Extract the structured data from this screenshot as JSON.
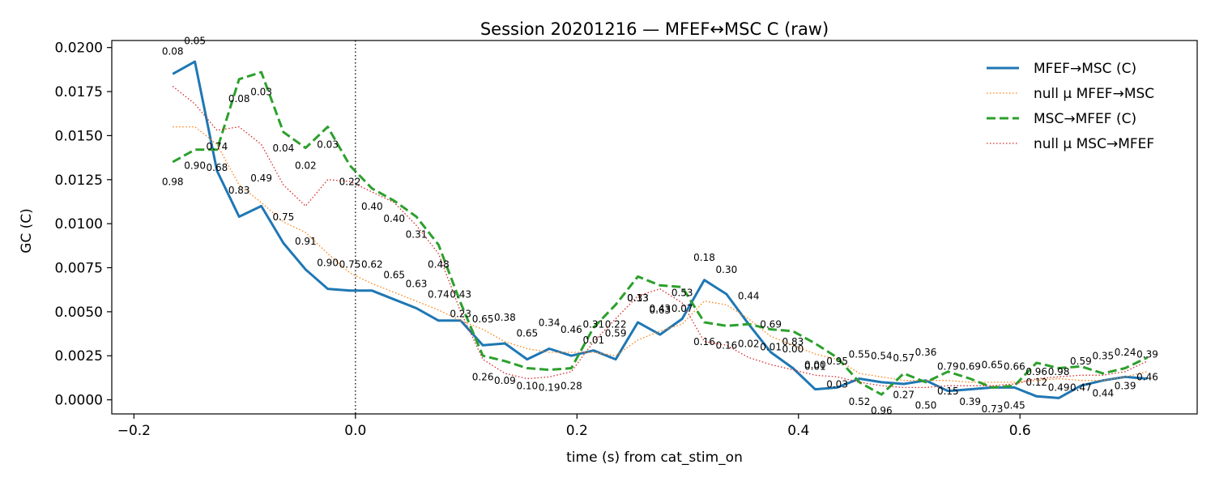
{
  "chart_data": {
    "type": "line",
    "title": "Session 20201216 — MFEF↔MSC C (raw)",
    "xlabel": "time (s) from cat_stim_on",
    "ylabel": "GC (C)",
    "xlim": [
      -0.22,
      0.76
    ],
    "ylim": [
      -0.0008,
      0.0204
    ],
    "xticks": [
      -0.2,
      0.0,
      0.2,
      0.4,
      0.6
    ],
    "xtick_labels": [
      "−0.2",
      "0.0",
      "0.2",
      "0.4",
      "0.6"
    ],
    "yticks": [
      0.0,
      0.0025,
      0.005,
      0.0075,
      0.01,
      0.0125,
      0.015,
      0.0175,
      0.02
    ],
    "ytick_labels": [
      "0.0000",
      "0.0025",
      "0.0050",
      "0.0075",
      "0.0100",
      "0.0125",
      "0.0150",
      "0.0175",
      "0.0200"
    ],
    "vline_x": 0.0,
    "grid": false,
    "legend_position": "top-right",
    "x": [
      -0.165,
      -0.145,
      -0.125,
      -0.105,
      -0.085,
      -0.065,
      -0.045,
      -0.025,
      -0.005,
      0.015,
      0.035,
      0.055,
      0.075,
      0.095,
      0.115,
      0.135,
      0.155,
      0.175,
      0.195,
      0.215,
      0.235,
      0.255,
      0.275,
      0.295,
      0.315,
      0.335,
      0.355,
      0.375,
      0.395,
      0.415,
      0.435,
      0.455,
      0.475,
      0.495,
      0.515,
      0.535,
      0.555,
      0.575,
      0.595,
      0.615,
      0.635,
      0.655,
      0.675,
      0.695,
      0.715
    ],
    "series": [
      {
        "name": "MFEF→MSC (C)",
        "color": "#1f77b4",
        "style": "solid",
        "values": [
          0.0185,
          0.0192,
          0.013,
          0.0104,
          0.011,
          0.0089,
          0.0074,
          0.0063,
          0.0062,
          0.0062,
          0.0057,
          0.0052,
          0.0045,
          0.0045,
          0.0031,
          0.0032,
          0.0023,
          0.0029,
          0.0025,
          0.0028,
          0.0023,
          0.0044,
          0.0037,
          0.0046,
          0.0068,
          0.006,
          0.0043,
          0.0027,
          0.0018,
          0.0006,
          0.0007,
          0.0012,
          0.001,
          0.0009,
          0.0011,
          0.0005,
          0.0006,
          0.0007,
          0.0007,
          0.0002,
          0.0001,
          0.0008,
          0.0011,
          0.0013,
          0.0012
        ]
      },
      {
        "name": "null μ MFEF→MSC",
        "color": "#ff7f0e",
        "style": "dotted",
        "values": [
          0.0155,
          0.0155,
          0.0145,
          0.0122,
          0.0112,
          0.0101,
          0.0095,
          0.0083,
          0.0072,
          0.0066,
          0.0061,
          0.0056,
          0.0051,
          0.0045,
          0.004,
          0.0033,
          0.0029,
          0.0027,
          0.0027,
          0.0027,
          0.0025,
          0.0034,
          0.0039,
          0.0043,
          0.0056,
          0.0054,
          0.0046,
          0.0036,
          0.0031,
          0.0026,
          0.0023,
          0.0015,
          0.0013,
          0.0011,
          0.0011,
          0.0011,
          0.001,
          0.001,
          0.001,
          0.0011,
          0.0012,
          0.0011,
          0.0011,
          0.0013,
          0.0016
        ]
      },
      {
        "name": "MSC→MFEF (C)",
        "color": "#2ca02c",
        "style": "dashed",
        "values": [
          0.0135,
          0.0142,
          0.0142,
          0.0182,
          0.0186,
          0.0152,
          0.0143,
          0.0155,
          0.0133,
          0.012,
          0.0113,
          0.0104,
          0.0088,
          0.0055,
          0.0025,
          0.0022,
          0.0018,
          0.0017,
          0.0018,
          0.0041,
          0.0054,
          0.007,
          0.0065,
          0.0064,
          0.0044,
          0.0042,
          0.0043,
          0.004,
          0.0039,
          0.0032,
          0.0024,
          0.001,
          0.0003,
          0.0015,
          0.001,
          0.0016,
          0.0012,
          0.0007,
          0.0008,
          0.0021,
          0.0018,
          0.0019,
          0.0015,
          0.0018,
          0.0024
        ]
      },
      {
        "name": "null μ MSC→MFEF",
        "color": "#d62728",
        "style": "dotted",
        "values": [
          0.0178,
          0.0168,
          0.0153,
          0.0155,
          0.0145,
          0.0122,
          0.011,
          0.0125,
          0.0124,
          0.0118,
          0.0112,
          0.0099,
          0.0083,
          0.005,
          0.0023,
          0.0015,
          0.0012,
          0.0013,
          0.0016,
          0.0033,
          0.0046,
          0.0059,
          0.0063,
          0.0055,
          0.0033,
          0.0031,
          0.0024,
          0.002,
          0.0017,
          0.0014,
          0.0013,
          0.001,
          0.0008,
          0.0007,
          0.0007,
          0.0008,
          0.0008,
          0.0008,
          0.0009,
          0.0012,
          0.0013,
          0.0014,
          0.0014,
          0.0016,
          0.0022
        ]
      }
    ],
    "annotations": [
      {
        "text": "0.08",
        "x": -0.165,
        "y": 0.0196
      },
      {
        "text": "0.98",
        "x": -0.165,
        "y": 0.0122
      },
      {
        "text": "0.05",
        "x": -0.145,
        "y": 0.0202
      },
      {
        "text": "0.90",
        "x": -0.145,
        "y": 0.0131
      },
      {
        "text": "0.74",
        "x": -0.125,
        "y": 0.0142
      },
      {
        "text": "0.68",
        "x": -0.125,
        "y": 0.013
      },
      {
        "text": "0.08",
        "x": -0.105,
        "y": 0.0169
      },
      {
        "text": "0.83",
        "x": -0.105,
        "y": 0.0117
      },
      {
        "text": "0.03",
        "x": -0.085,
        "y": 0.0173
      },
      {
        "text": "0.49",
        "x": -0.085,
        "y": 0.0124
      },
      {
        "text": "0.75",
        "x": -0.065,
        "y": 0.0102
      },
      {
        "text": "0.04",
        "x": -0.065,
        "y": 0.0141
      },
      {
        "text": "0.02",
        "x": -0.045,
        "y": 0.0131
      },
      {
        "text": "0.91",
        "x": -0.045,
        "y": 0.0088
      },
      {
        "text": "0.03",
        "x": -0.025,
        "y": 0.0143
      },
      {
        "text": "0.90",
        "x": -0.025,
        "y": 0.0076
      },
      {
        "text": "0.75",
        "x": -0.005,
        "y": 0.0075
      },
      {
        "text": "0.22",
        "x": -0.005,
        "y": 0.0122
      },
      {
        "text": "0.62",
        "x": 0.015,
        "y": 0.0075
      },
      {
        "text": "0.40",
        "x": 0.015,
        "y": 0.0108
      },
      {
        "text": "0.40",
        "x": 0.035,
        "y": 0.0101
      },
      {
        "text": "0.65",
        "x": 0.035,
        "y": 0.0069
      },
      {
        "text": "0.31",
        "x": 0.055,
        "y": 0.0092
      },
      {
        "text": "0.63",
        "x": 0.055,
        "y": 0.0064
      },
      {
        "text": "0.48",
        "x": 0.075,
        "y": 0.0075
      },
      {
        "text": "0.74",
        "x": 0.075,
        "y": 0.0058
      },
      {
        "text": "0.43",
        "x": 0.095,
        "y": 0.0058
      },
      {
        "text": "0.23",
        "x": 0.095,
        "y": 0.0047
      },
      {
        "text": "0.65",
        "x": 0.115,
        "y": 0.0044
      },
      {
        "text": "0.26",
        "x": 0.115,
        "y": 0.0011
      },
      {
        "text": "0.38",
        "x": 0.135,
        "y": 0.0045
      },
      {
        "text": "0.09",
        "x": 0.135,
        "y": 0.0009
      },
      {
        "text": "0.65",
        "x": 0.155,
        "y": 0.0036
      },
      {
        "text": "0.10",
        "x": 0.155,
        "y": 0.0006
      },
      {
        "text": "0.34",
        "x": 0.175,
        "y": 0.0042
      },
      {
        "text": "0.19",
        "x": 0.175,
        "y": 0.0005
      },
      {
        "text": "0.46",
        "x": 0.195,
        "y": 0.0038
      },
      {
        "text": "0.28",
        "x": 0.195,
        "y": 0.0006
      },
      {
        "text": "0.31",
        "x": 0.215,
        "y": 0.0041
      },
      {
        "text": "0.01",
        "x": 0.215,
        "y": 0.0032
      },
      {
        "text": "0.22",
        "x": 0.235,
        "y": 0.0041
      },
      {
        "text": "0.59",
        "x": 0.235,
        "y": 0.0036
      },
      {
        "text": "0.13",
        "x": 0.255,
        "y": 0.0056
      },
      {
        "text": "0.33",
        "x": 0.255,
        "y": 0.0056
      },
      {
        "text": "0.43",
        "x": 0.275,
        "y": 0.005
      },
      {
        "text": "0.63",
        "x": 0.275,
        "y": 0.0049
      },
      {
        "text": "0.53",
        "x": 0.295,
        "y": 0.0059
      },
      {
        "text": "0.07",
        "x": 0.295,
        "y": 0.005
      },
      {
        "text": "0.18",
        "x": 0.315,
        "y": 0.0079
      },
      {
        "text": "0.16",
        "x": 0.315,
        "y": 0.0031
      },
      {
        "text": "0.30",
        "x": 0.335,
        "y": 0.0072
      },
      {
        "text": "0.16",
        "x": 0.335,
        "y": 0.0029
      },
      {
        "text": "0.44",
        "x": 0.355,
        "y": 0.0057
      },
      {
        "text": "0.02",
        "x": 0.355,
        "y": 0.003
      },
      {
        "text": "0.69",
        "x": 0.375,
        "y": 0.0041
      },
      {
        "text": "0.01",
        "x": 0.375,
        "y": 0.0028
      },
      {
        "text": "0.83",
        "x": 0.395,
        "y": 0.0031
      },
      {
        "text": "0.00",
        "x": 0.395,
        "y": 0.0027
      },
      {
        "text": "0.00",
        "x": 0.415,
        "y": 0.0018
      },
      {
        "text": "0.01",
        "x": 0.415,
        "y": 0.0017
      },
      {
        "text": "0.95",
        "x": 0.435,
        "y": 0.002
      },
      {
        "text": "0.03",
        "x": 0.435,
        "y": 0.0007
      },
      {
        "text": "0.55",
        "x": 0.455,
        "y": 0.0024
      },
      {
        "text": "0.52",
        "x": 0.455,
        "y": -0.0003
      },
      {
        "text": "0.54",
        "x": 0.475,
        "y": 0.0023
      },
      {
        "text": "0.96",
        "x": 0.475,
        "y": -0.0008
      },
      {
        "text": "0.57",
        "x": 0.495,
        "y": 0.0022
      },
      {
        "text": "0.27",
        "x": 0.495,
        "y": 0.0001
      },
      {
        "text": "0.36",
        "x": 0.515,
        "y": 0.0025
      },
      {
        "text": "0.50",
        "x": 0.515,
        "y": -0.0005
      },
      {
        "text": "0.79",
        "x": 0.535,
        "y": 0.0017
      },
      {
        "text": "0.15",
        "x": 0.535,
        "y": 0.0003
      },
      {
        "text": "0.69",
        "x": 0.555,
        "y": 0.0017
      },
      {
        "text": "0.39",
        "x": 0.555,
        "y": -0.0003
      },
      {
        "text": "0.65",
        "x": 0.575,
        "y": 0.0018
      },
      {
        "text": "0.73",
        "x": 0.575,
        "y": -0.0007
      },
      {
        "text": "0.66",
        "x": 0.595,
        "y": 0.0017
      },
      {
        "text": "0.45",
        "x": 0.595,
        "y": -0.0005
      },
      {
        "text": "0.96",
        "x": 0.615,
        "y": 0.0014
      },
      {
        "text": "0.12",
        "x": 0.615,
        "y": 0.0008
      },
      {
        "text": "0.98",
        "x": 0.635,
        "y": 0.0014
      },
      {
        "text": "0.49",
        "x": 0.635,
        "y": 0.0005
      },
      {
        "text": "0.59",
        "x": 0.655,
        "y": 0.002
      },
      {
        "text": "0.47",
        "x": 0.655,
        "y": 0.0005
      },
      {
        "text": "0.35",
        "x": 0.675,
        "y": 0.0023
      },
      {
        "text": "0.44",
        "x": 0.675,
        "y": 0.0002
      },
      {
        "text": "0.24",
        "x": 0.695,
        "y": 0.0025
      },
      {
        "text": "0.39",
        "x": 0.695,
        "y": 0.0006
      },
      {
        "text": "0.39",
        "x": 0.715,
        "y": 0.0024
      },
      {
        "text": "0.46",
        "x": 0.715,
        "y": 0.0011
      }
    ]
  }
}
